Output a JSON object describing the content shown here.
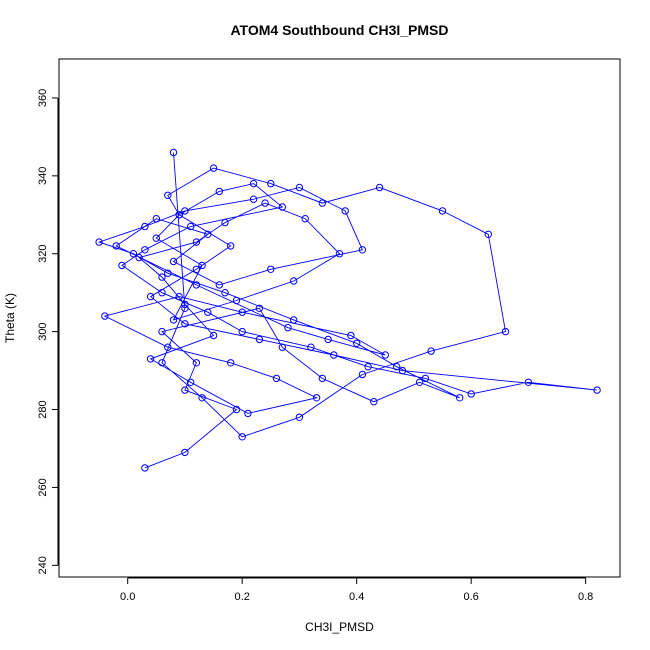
{
  "chart_data": {
    "type": "scatter",
    "title": "ATOM4 Southbound CH3I_PMSD",
    "xlabel": "CH3I_PMSD",
    "ylabel": "Theta (K)",
    "xlim": [
      -0.12,
      0.86
    ],
    "ylim": [
      237,
      370
    ],
    "xticks": [
      0.0,
      0.2,
      0.4,
      0.6,
      0.8
    ],
    "xtick_labels": [
      "0.0",
      "0.2",
      "0.4",
      "0.6",
      "0.8"
    ],
    "yticks": [
      240,
      260,
      280,
      300,
      320,
      340,
      360
    ],
    "ytick_labels": [
      "240",
      "260",
      "280",
      "300",
      "320",
      "340",
      "360"
    ],
    "grid": false,
    "legend": "none",
    "colors": {
      "series": "#0000ff",
      "frame": "#000000"
    },
    "mark": "open-circle-connected",
    "series": [
      {
        "x": [
          0.03,
          0.1,
          0.19,
          0.1,
          0.12,
          0.06,
          0.23,
          0.27,
          0.34,
          0.43,
          0.51,
          0.58,
          0.47,
          0.4,
          0.29,
          0.17,
          0.07,
          0.01,
          -0.05,
          0.03,
          0.1,
          0.22,
          0.3,
          0.38,
          0.41,
          0.25,
          0.16,
          0.08,
          0.14,
          0.05,
          -0.02,
          0.12,
          0.28,
          0.35,
          0.45,
          0.39,
          0.2,
          0.09,
          -0.04,
          0.07,
          0.18,
          0.26,
          0.33,
          0.21,
          0.11,
          0.04,
          0.15,
          0.1,
          0.06,
          0.02,
          0.12,
          0.17,
          0.24,
          0.31,
          0.37,
          0.29,
          0.19,
          0.08,
          0.13,
          0.05,
          0.09,
          0.16,
          0.22,
          0.27,
          0.11,
          0.03,
          -0.01,
          0.06,
          0.14,
          0.2,
          0.32,
          0.42,
          0.52,
          0.6,
          0.7,
          0.82,
          0.48,
          0.36,
          0.23,
          0.1,
          0.04,
          0.12,
          0.18,
          0.09,
          0.07,
          0.15,
          0.25,
          0.34,
          0.44,
          0.55,
          0.63,
          0.66,
          0.53,
          0.41,
          0.3,
          0.2,
          0.13,
          0.06,
          0.1,
          0.08
        ],
        "y": [
          265,
          269,
          280,
          285,
          292,
          300,
          306,
          296,
          288,
          282,
          287,
          283,
          291,
          297,
          303,
          310,
          315,
          320,
          323,
          327,
          331,
          334,
          337,
          331,
          321,
          316,
          312,
          318,
          325,
          329,
          322,
          312,
          301,
          298,
          294,
          299,
          305,
          309,
          304,
          296,
          292,
          288,
          283,
          279,
          287,
          293,
          299,
          307,
          314,
          319,
          323,
          328,
          333,
          329,
          320,
          313,
          308,
          303,
          317,
          324,
          330,
          336,
          338,
          332,
          327,
          321,
          317,
          310,
          305,
          300,
          296,
          291,
          288,
          284,
          287,
          285,
          290,
          294,
          298,
          302,
          309,
          316,
          322,
          330,
          335,
          342,
          338,
          333,
          337,
          331,
          325,
          300,
          295,
          289,
          278,
          273,
          283,
          292,
          306,
          346
        ],
        "label_text": ""
      }
    ]
  }
}
